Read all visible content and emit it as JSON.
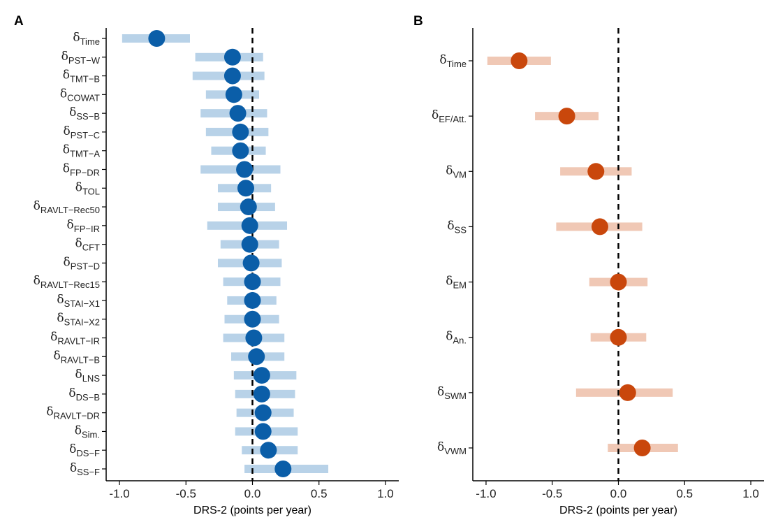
{
  "chart_data": [
    {
      "type": "forest",
      "panel_label": "A",
      "xlabel": "DRS-2 (points per year)",
      "xlim": [
        -1.1,
        1.1
      ],
      "xticks": [
        "-1.0",
        "-0.5",
        "0.0",
        "0.5",
        "1.0"
      ],
      "xtick_values": [
        -1.0,
        -0.5,
        0.0,
        0.5,
        1.0
      ],
      "reference_line": 0.0,
      "point_color": "#0b5ea8",
      "ci_color": "#b8d2e8",
      "rows": [
        {
          "base": "δ",
          "sub": "Time",
          "estimate": -0.72,
          "lower": -0.98,
          "upper": -0.47
        },
        {
          "base": "δ",
          "sub": "PST−W",
          "estimate": -0.15,
          "lower": -0.43,
          "upper": 0.08
        },
        {
          "base": "δ",
          "sub": "TMT−B",
          "estimate": -0.15,
          "lower": -0.45,
          "upper": 0.09
        },
        {
          "base": "δ",
          "sub": "COWAT",
          "estimate": -0.14,
          "lower": -0.35,
          "upper": 0.05
        },
        {
          "base": "δ",
          "sub": "SS−B",
          "estimate": -0.11,
          "lower": -0.39,
          "upper": 0.11
        },
        {
          "base": "δ",
          "sub": "PST−C",
          "estimate": -0.09,
          "lower": -0.35,
          "upper": 0.12
        },
        {
          "base": "δ",
          "sub": "TMT−A",
          "estimate": -0.09,
          "lower": -0.31,
          "upper": 0.1
        },
        {
          "base": "δ",
          "sub": "FP−DR",
          "estimate": -0.06,
          "lower": -0.39,
          "upper": 0.21
        },
        {
          "base": "δ",
          "sub": "TOL",
          "estimate": -0.05,
          "lower": -0.26,
          "upper": 0.14
        },
        {
          "base": "δ",
          "sub": "RAVLT−Rec50",
          "estimate": -0.03,
          "lower": -0.26,
          "upper": 0.17
        },
        {
          "base": "δ",
          "sub": "FP−IR",
          "estimate": -0.02,
          "lower": -0.34,
          "upper": 0.26
        },
        {
          "base": "δ",
          "sub": "CFT",
          "estimate": -0.02,
          "lower": -0.24,
          "upper": 0.2
        },
        {
          "base": "δ",
          "sub": "PST−D",
          "estimate": -0.01,
          "lower": -0.26,
          "upper": 0.22
        },
        {
          "base": "δ",
          "sub": "RAVLT−Rec15",
          "estimate": 0.0,
          "lower": -0.22,
          "upper": 0.21
        },
        {
          "base": "δ",
          "sub": "STAI−X1",
          "estimate": 0.0,
          "lower": -0.19,
          "upper": 0.18
        },
        {
          "base": "δ",
          "sub": "STAI−X2",
          "estimate": 0.0,
          "lower": -0.21,
          "upper": 0.2
        },
        {
          "base": "δ",
          "sub": "RAVLT−IR",
          "estimate": 0.01,
          "lower": -0.22,
          "upper": 0.24
        },
        {
          "base": "δ",
          "sub": "RAVLT−B",
          "estimate": 0.03,
          "lower": -0.16,
          "upper": 0.24
        },
        {
          "base": "δ",
          "sub": "LNS",
          "estimate": 0.07,
          "lower": -0.14,
          "upper": 0.33
        },
        {
          "base": "δ",
          "sub": "DS−B",
          "estimate": 0.07,
          "lower": -0.13,
          "upper": 0.32
        },
        {
          "base": "δ",
          "sub": "RAVLT−DR",
          "estimate": 0.08,
          "lower": -0.12,
          "upper": 0.31
        },
        {
          "base": "δ",
          "sub": "Sim.",
          "estimate": 0.08,
          "lower": -0.13,
          "upper": 0.34
        },
        {
          "base": "δ",
          "sub": "DS−F",
          "estimate": 0.12,
          "lower": -0.08,
          "upper": 0.34
        },
        {
          "base": "δ",
          "sub": "SS−F",
          "estimate": 0.23,
          "lower": -0.06,
          "upper": 0.57
        }
      ]
    },
    {
      "type": "forest",
      "panel_label": "B",
      "xlabel": "DRS-2 (points per year)",
      "xlim": [
        -1.1,
        1.1
      ],
      "xticks": [
        "-1.0",
        "-0.5",
        "0.0",
        "0.5",
        "1.0"
      ],
      "xtick_values": [
        -1.0,
        -0.5,
        0.0,
        0.5,
        1.0
      ],
      "reference_line": 0.0,
      "point_color": "#c9470c",
      "ci_color": "#f0c8b5",
      "rows": [
        {
          "base": "δ",
          "sub": "Time",
          "estimate": -0.75,
          "lower": -0.99,
          "upper": -0.51
        },
        {
          "base": "δ",
          "sub": "EF/Att.",
          "estimate": -0.39,
          "lower": -0.63,
          "upper": -0.15
        },
        {
          "base": "δ",
          "sub": "VM",
          "estimate": -0.17,
          "lower": -0.44,
          "upper": 0.1
        },
        {
          "base": "δ",
          "sub": "SS",
          "estimate": -0.14,
          "lower": -0.47,
          "upper": 0.18
        },
        {
          "base": "δ",
          "sub": "EM",
          "estimate": 0.0,
          "lower": -0.22,
          "upper": 0.22
        },
        {
          "base": "δ",
          "sub": "An.",
          "estimate": 0.0,
          "lower": -0.21,
          "upper": 0.21
        },
        {
          "base": "δ",
          "sub": "SWM",
          "estimate": 0.07,
          "lower": -0.32,
          "upper": 0.41
        },
        {
          "base": "δ",
          "sub": "VWM",
          "estimate": 0.18,
          "lower": -0.08,
          "upper": 0.45
        }
      ]
    }
  ]
}
